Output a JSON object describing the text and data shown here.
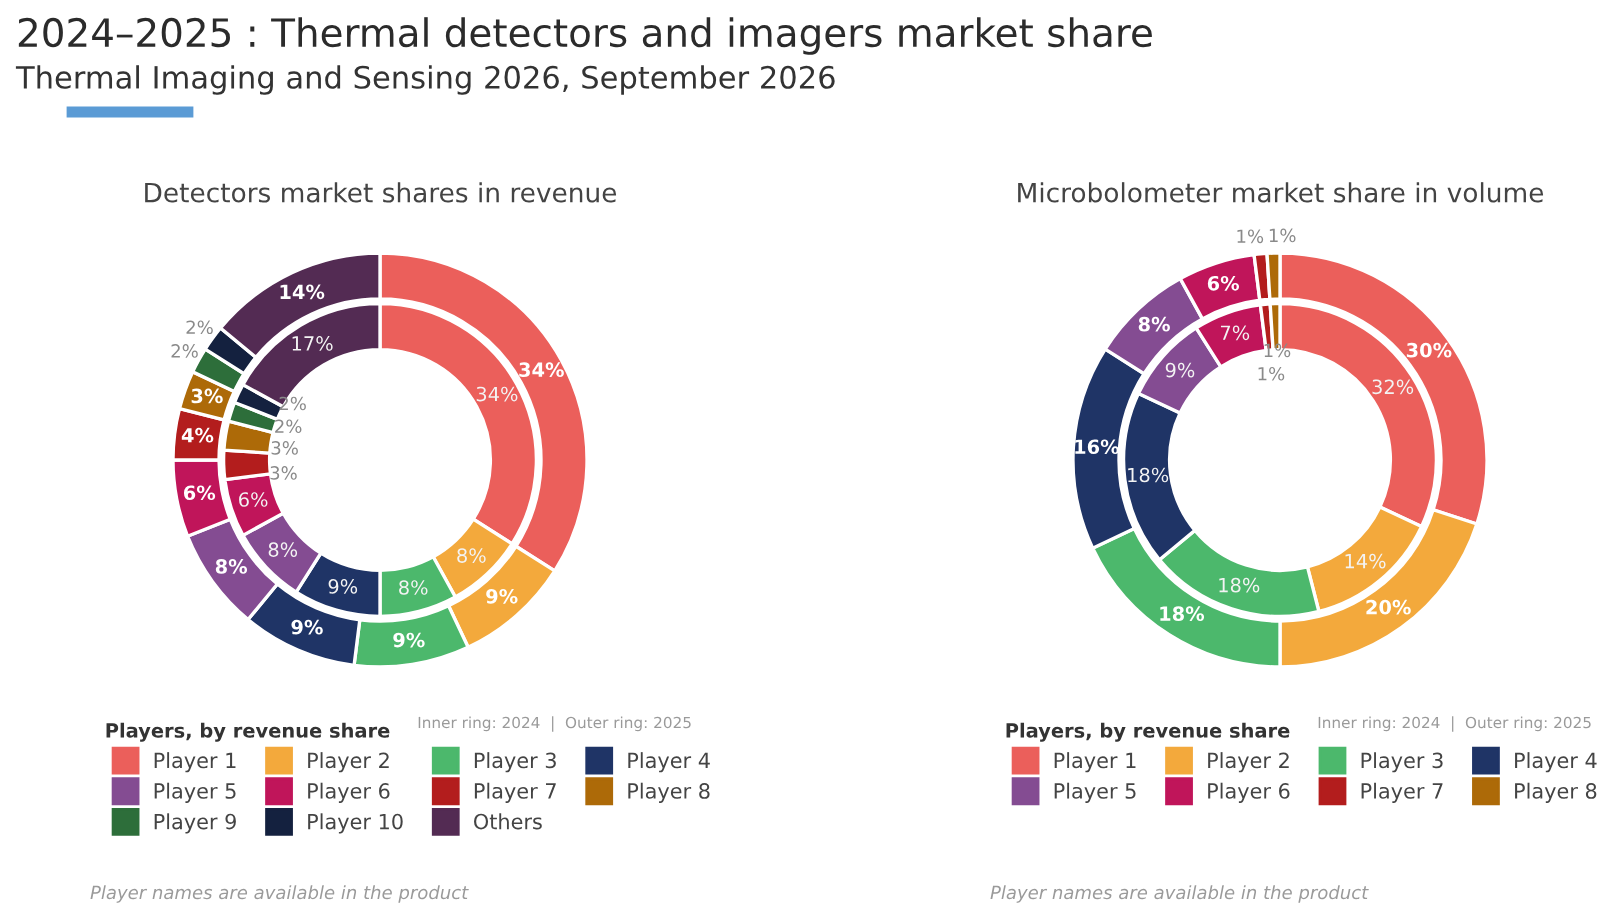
{
  "chart_data": [
    {
      "type": "donut",
      "title": "Detectors market shares in revenue",
      "categories": [
        "Player 1",
        "Player 2",
        "Player 3",
        "Player 4",
        "Player 5",
        "Player 6",
        "Player 7",
        "Player 8",
        "Player 9",
        "Player 10",
        "Others"
      ],
      "colors": [
        "#eb5f5b",
        "#f3a93c",
        "#4cb86c",
        "#1f3466",
        "#844c92",
        "#c0155a",
        "#b31d1d",
        "#ad6a08",
        "#2d6e3a",
        "#14213f",
        "#532b53"
      ],
      "series": [
        {
          "values": [
            34,
            8,
            8,
            9,
            8,
            6,
            3,
            3,
            2,
            2,
            17
          ],
          "value_labels": [
            "34%",
            "8%",
            "8%",
            "9%",
            "8%",
            "6%",
            "3%",
            "3%",
            "2%",
            "2%",
            "17%"
          ]
        },
        {
          "values": [
            34,
            9,
            9,
            9,
            8,
            6,
            4,
            3,
            2,
            2,
            14
          ],
          "value_labels": [
            "34%",
            "9%",
            "9%",
            "9%",
            "8%",
            "6%",
            "4%",
            "3%",
            "2%",
            "2%",
            "14%"
          ]
        }
      ],
      "legend": "bottom",
      "legend_title": "Players, by revenue share",
      "annotations": [
        "2024–2025 : Thermal detectors and imagers market share",
        "Thermal Imaging and Sensing 2026, September 2026",
        "Inner ring: 2024  |  Outer ring: 2025",
        "Player names are available in the product"
      ]
    },
    {
      "type": "donut",
      "title": "Microbolometer market share in volume",
      "categories": [
        "Player 1",
        "Player 2",
        "Player 3",
        "Player 4",
        "Player 5",
        "Player 6",
        "Player 7",
        "Player 8"
      ],
      "colors": [
        "#eb5f5b",
        "#f3a93c",
        "#4cb86c",
        "#1f3466",
        "#844c92",
        "#c0155a",
        "#b31d1d",
        "#ad6a08"
      ],
      "series": [
        {
          "values": [
            32,
            14,
            18,
            18,
            9,
            7,
            1,
            1
          ],
          "value_labels": [
            "32%",
            "14%",
            "18%",
            "18%",
            "9%",
            "7%",
            "1%",
            "1%"
          ]
        },
        {
          "values": [
            30,
            20,
            18,
            16,
            8,
            6,
            1,
            1
          ],
          "value_labels": [
            "30%",
            "20%",
            "18%",
            "16%",
            "8%",
            "6%",
            "1%",
            "1%"
          ]
        }
      ],
      "legend": "bottom",
      "legend_title": "Players, by revenue share",
      "annotations": [
        "Inner ring: 2024  |  Outer ring: 2025",
        "Player names are available in the product"
      ]
    }
  ]
}
